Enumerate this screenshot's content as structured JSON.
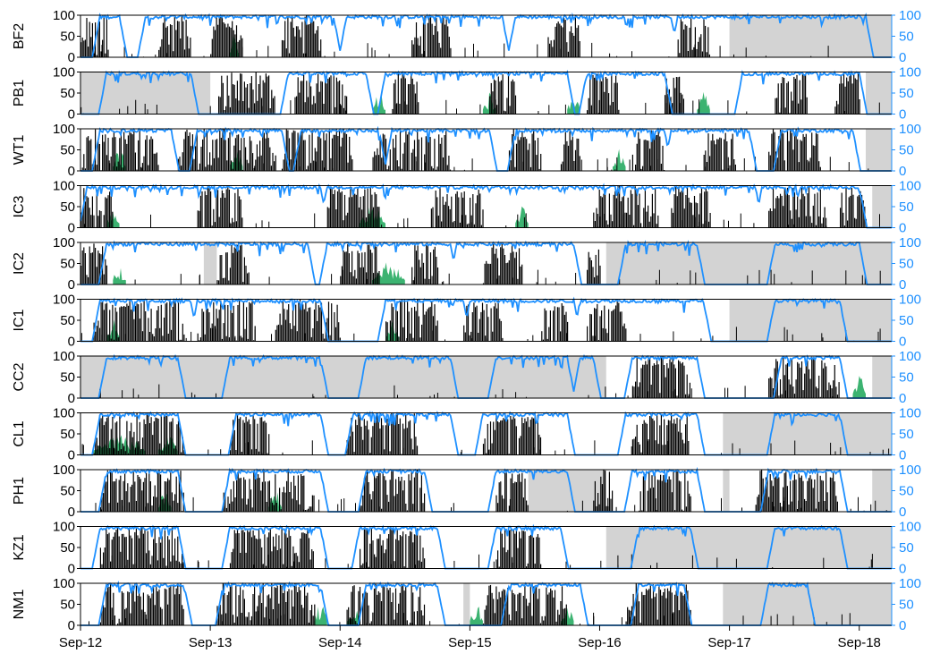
{
  "chart_data": {
    "type": "multi-panel time series (bar + line)",
    "x_tick_labels": [
      "Sep-12",
      "Sep-13",
      "Sep-14",
      "Sep-15",
      "Sep-16",
      "Sep-17",
      "Sep-18"
    ],
    "x_range_days": [
      0,
      6.25
    ],
    "left_axis": {
      "ylim": [
        0,
        100
      ],
      "ticks": [
        "0",
        "50",
        "100"
      ],
      "color": "#000000"
    },
    "right_axis": {
      "ylim": [
        0,
        100
      ],
      "ticks": [
        "0",
        "50",
        "100"
      ],
      "color": "#1E90FF"
    },
    "colors": {
      "black_bars": "#000000",
      "green_fill": "#3CB371",
      "blue_line": "#1E90FF",
      "gap_shading": "#D3D3D3"
    },
    "panels": [
      {
        "name": "BF2",
        "gaps": [
          [
            5.0,
            6.25
          ]
        ],
        "blue_high": [
          [
            0.15,
            0.3
          ],
          [
            0.5,
            1.95
          ],
          [
            2.05,
            3.25
          ],
          [
            3.35,
            4.55
          ],
          [
            4.6,
            5.6
          ],
          [
            5.55,
            6.05
          ]
        ],
        "black_bursts": [
          [
            0.0,
            0.22
          ],
          [
            0.6,
            0.85
          ],
          [
            1.0,
            1.25
          ],
          [
            1.55,
            1.85
          ],
          [
            2.55,
            2.85
          ],
          [
            3.6,
            3.85
          ],
          [
            4.6,
            4.85
          ]
        ],
        "green_bursts": [
          [
            1.15,
            1.22
          ]
        ]
      },
      {
        "name": "PB1",
        "gaps": [
          [
            0.0,
            1.0
          ],
          [
            6.05,
            6.25
          ]
        ],
        "blue_high": [
          [
            0.2,
            0.85
          ],
          [
            1.6,
            2.2
          ],
          [
            2.35,
            3.0
          ],
          [
            3.0,
            3.75
          ],
          [
            3.9,
            4.5
          ],
          [
            5.1,
            6.0
          ]
        ],
        "black_bursts": [
          [
            1.05,
            1.5
          ],
          [
            1.65,
            2.05
          ],
          [
            2.4,
            2.6
          ],
          [
            3.15,
            3.35
          ],
          [
            3.9,
            4.15
          ],
          [
            4.5,
            4.65
          ],
          [
            5.35,
            5.6
          ],
          [
            5.8,
            6.0
          ]
        ],
        "green_bursts": [
          [
            2.25,
            2.35
          ],
          [
            3.1,
            3.2
          ],
          [
            3.75,
            3.85
          ],
          [
            4.75,
            4.85
          ]
        ]
      },
      {
        "name": "WT1",
        "gaps": [
          [
            6.05,
            6.25
          ]
        ],
        "blue_high": [
          [
            0.15,
            0.7
          ],
          [
            0.9,
            1.55
          ],
          [
            1.7,
            2.3
          ],
          [
            2.4,
            3.15
          ],
          [
            3.35,
            4.5
          ],
          [
            4.55,
            5.15
          ],
          [
            5.4,
            5.95
          ]
        ],
        "black_bursts": [
          [
            0.0,
            0.6
          ],
          [
            0.75,
            1.5
          ],
          [
            1.55,
            2.1
          ],
          [
            2.25,
            2.85
          ],
          [
            3.3,
            3.55
          ],
          [
            3.7,
            3.85
          ],
          [
            4.25,
            4.5
          ],
          [
            4.8,
            5.05
          ],
          [
            5.3,
            5.7
          ]
        ],
        "green_bursts": [
          [
            0.25,
            0.35
          ],
          [
            1.15,
            1.25
          ],
          [
            4.1,
            4.2
          ]
        ]
      },
      {
        "name": "IC3",
        "gaps": [
          [
            6.1,
            6.25
          ]
        ],
        "blue_high": [
          [
            0.05,
            0.85
          ],
          [
            0.7,
            1.85
          ],
          [
            1.9,
            2.85
          ],
          [
            2.7,
            3.85
          ],
          [
            3.7,
            4.6
          ],
          [
            4.45,
            5.2
          ],
          [
            5.25,
            6.0
          ]
        ],
        "black_bursts": [
          [
            0.0,
            0.25
          ],
          [
            0.9,
            1.25
          ],
          [
            1.9,
            2.3
          ],
          [
            2.7,
            3.1
          ],
          [
            3.95,
            4.45
          ],
          [
            4.55,
            4.85
          ],
          [
            5.3,
            5.75
          ],
          [
            5.85,
            6.05
          ]
        ],
        "green_bursts": [
          [
            0.2,
            0.3
          ],
          [
            2.15,
            2.35
          ],
          [
            3.35,
            3.45
          ]
        ]
      },
      {
        "name": "IC2",
        "gaps": [
          [
            0.95,
            1.05
          ],
          [
            4.05,
            6.25
          ]
        ],
        "blue_high": [
          [
            0.2,
            0.85
          ],
          [
            0.6,
            1.75
          ],
          [
            1.9,
            2.85
          ],
          [
            2.9,
            3.8
          ],
          [
            4.2,
            4.75
          ],
          [
            5.35,
            5.85
          ],
          [
            5.85,
            6.0
          ]
        ],
        "black_bursts": [
          [
            0.0,
            0.2
          ],
          [
            1.05,
            1.3
          ],
          [
            2.0,
            2.3
          ],
          [
            2.55,
            2.75
          ],
          [
            3.1,
            3.4
          ],
          [
            3.9,
            4.0
          ]
        ],
        "green_bursts": [
          [
            0.25,
            0.35
          ],
          [
            2.25,
            2.5
          ]
        ]
      },
      {
        "name": "IC1",
        "gaps": [
          [
            5.0,
            6.25
          ]
        ],
        "blue_high": [
          [
            0.15,
            0.85
          ],
          [
            0.9,
            1.85
          ],
          [
            2.35,
            2.95
          ],
          [
            3.0,
            3.8
          ],
          [
            3.85,
            4.8
          ],
          [
            5.35,
            5.85
          ]
        ],
        "black_bursts": [
          [
            0.1,
            0.8
          ],
          [
            0.9,
            1.35
          ],
          [
            1.5,
            2.0
          ],
          [
            2.35,
            2.75
          ],
          [
            2.95,
            3.25
          ],
          [
            3.55,
            3.75
          ],
          [
            3.9,
            4.2
          ]
        ],
        "green_bursts": [
          [
            0.2,
            0.3
          ],
          [
            2.35,
            2.45
          ]
        ]
      },
      {
        "name": "CC2",
        "gaps": [
          [
            0.0,
            4.05
          ],
          [
            6.1,
            6.25
          ]
        ],
        "blue_high": [
          [
            0.2,
            0.75
          ],
          [
            1.15,
            1.85
          ],
          [
            2.2,
            2.85
          ],
          [
            3.2,
            3.75
          ],
          [
            3.85,
            3.95
          ],
          [
            4.25,
            4.75
          ],
          [
            5.4,
            5.85
          ]
        ],
        "black_bursts": [
          [
            4.25,
            4.7
          ],
          [
            5.3,
            5.85
          ]
        ],
        "green_bursts": [
          [
            5.95,
            6.05
          ]
        ]
      },
      {
        "name": "CL1",
        "gaps": [
          [
            4.95,
            6.25
          ]
        ],
        "blue_high": [
          [
            0.15,
            0.75
          ],
          [
            1.2,
            1.85
          ],
          [
            2.1,
            2.85
          ],
          [
            3.1,
            3.75
          ],
          [
            4.2,
            4.75
          ],
          [
            5.35,
            5.85
          ]
        ],
        "black_bursts": [
          [
            0.1,
            0.8
          ],
          [
            1.15,
            1.45
          ],
          [
            2.05,
            2.6
          ],
          [
            3.1,
            3.55
          ],
          [
            4.25,
            4.7
          ]
        ],
        "green_bursts": [
          [
            0.1,
            0.5
          ],
          [
            0.6,
            0.75
          ]
        ]
      },
      {
        "name": "PH1",
        "gaps": [
          [
            3.45,
            4.05
          ],
          [
            4.95,
            5.0
          ],
          [
            6.1,
            6.25
          ]
        ],
        "blue_high": [
          [
            0.2,
            0.75
          ],
          [
            1.15,
            1.85
          ],
          [
            2.2,
            2.65
          ],
          [
            3.2,
            3.75
          ],
          [
            4.25,
            4.75
          ],
          [
            5.3,
            5.85
          ]
        ],
        "black_bursts": [
          [
            0.15,
            0.8
          ],
          [
            1.1,
            1.8
          ],
          [
            2.15,
            2.65
          ],
          [
            3.2,
            3.45
          ],
          [
            3.95,
            4.1
          ],
          [
            4.3,
            4.7
          ],
          [
            5.2,
            5.85
          ]
        ],
        "green_bursts": [
          [
            0.6,
            0.7
          ],
          [
            1.45,
            1.55
          ]
        ]
      },
      {
        "name": "KZ1",
        "gaps": [
          [
            4.05,
            6.25
          ]
        ],
        "blue_high": [
          [
            0.15,
            0.75
          ],
          [
            1.15,
            1.85
          ],
          [
            2.15,
            2.75
          ],
          [
            3.2,
            3.7
          ],
          [
            4.3,
            4.7
          ],
          [
            5.35,
            5.85
          ]
        ],
        "black_bursts": [
          [
            0.15,
            0.8
          ],
          [
            1.15,
            1.8
          ],
          [
            2.15,
            2.65
          ],
          [
            3.2,
            3.55
          ]
        ],
        "green_bursts": []
      },
      {
        "name": "NM1",
        "gaps": [
          [
            2.95,
            3.0
          ],
          [
            4.95,
            6.25
          ]
        ],
        "blue_high": [
          [
            0.2,
            0.8
          ],
          [
            1.1,
            1.85
          ],
          [
            2.2,
            2.75
          ],
          [
            3.3,
            3.85
          ],
          [
            4.3,
            4.65
          ],
          [
            5.3,
            5.6
          ]
        ],
        "black_bursts": [
          [
            0.15,
            0.8
          ],
          [
            1.05,
            1.8
          ],
          [
            2.05,
            2.65
          ],
          [
            3.1,
            3.75
          ],
          [
            4.2,
            4.7
          ]
        ],
        "green_bursts": [
          [
            1.8,
            1.9
          ],
          [
            2.05,
            2.15
          ],
          [
            3.0,
            3.1
          ],
          [
            3.7,
            3.8
          ]
        ]
      }
    ]
  }
}
